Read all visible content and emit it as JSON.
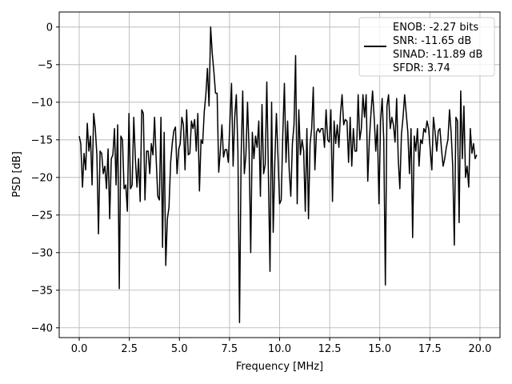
{
  "chart_data": {
    "type": "line",
    "xlabel": "Frequency [MHz]",
    "ylabel": "PSD [dB]",
    "xlim": [
      -1.0,
      21.0
    ],
    "ylim": [
      -41.3,
      2.0
    ],
    "x_ticks": [
      0.0,
      2.5,
      5.0,
      7.5,
      10.0,
      12.5,
      15.0,
      17.5,
      20.0
    ],
    "x_tick_labels": [
      "0.0",
      "2.5",
      "5.0",
      "7.5",
      "10.0",
      "12.5",
      "15.0",
      "17.5",
      "20.0"
    ],
    "y_ticks": [
      0,
      -5,
      -10,
      -15,
      -20,
      -25,
      -30,
      -35,
      -40
    ],
    "y_tick_labels": [
      "0",
      "−5",
      "−10",
      "−15",
      "−20",
      "−25",
      "−30",
      "−35",
      "−40"
    ],
    "grid": true,
    "legend": {
      "placement": "top-right",
      "entries": [
        "ENOB: -2.27 bits",
        "SNR: -11.65 dB",
        "SINAD: -11.89 dB",
        "SFDR: 3.74"
      ]
    },
    "series": [
      {
        "color": "#000000",
        "x": [
          0.0,
          0.08,
          0.16,
          0.24,
          0.32,
          0.4,
          0.48,
          0.56,
          0.64,
          0.72,
          0.8,
          0.88,
          0.96,
          1.04,
          1.12,
          1.2,
          1.28,
          1.36,
          1.44,
          1.52,
          1.6,
          1.68,
          1.76,
          1.84,
          1.92,
          2.0,
          2.08,
          2.16,
          2.24,
          2.32,
          2.4,
          2.48,
          2.56,
          2.64,
          2.72,
          2.8,
          2.88,
          2.96,
          3.04,
          3.12,
          3.2,
          3.28,
          3.36,
          3.44,
          3.52,
          3.6,
          3.68,
          3.76,
          3.84,
          3.92,
          4.0,
          4.08,
          4.16,
          4.24,
          4.32,
          4.4,
          4.48,
          4.56,
          4.64,
          4.72,
          4.8,
          4.88,
          4.96,
          5.04,
          5.12,
          5.2,
          5.28,
          5.36,
          5.44,
          5.52,
          5.6,
          5.68,
          5.76,
          5.84,
          5.92,
          6.0,
          6.08,
          6.16,
          6.24,
          6.32,
          6.4,
          6.48,
          6.56,
          6.64,
          6.72,
          6.8,
          6.88,
          6.96,
          7.04,
          7.12,
          7.2,
          7.28,
          7.36,
          7.44,
          7.52,
          7.6,
          7.68,
          7.76,
          7.84,
          7.92,
          8.0,
          8.08,
          8.16,
          8.24,
          8.32,
          8.4,
          8.48,
          8.56,
          8.64,
          8.72,
          8.8,
          8.88,
          8.96,
          9.04,
          9.12,
          9.2,
          9.28,
          9.36,
          9.44,
          9.52,
          9.6,
          9.68,
          9.76,
          9.84,
          9.92,
          10.0,
          10.08,
          10.16,
          10.24,
          10.32,
          10.4,
          10.48,
          10.56,
          10.64,
          10.72,
          10.8,
          10.88,
          10.96,
          11.04,
          11.12,
          11.2,
          11.28,
          11.36,
          11.44,
          11.52,
          11.6,
          11.68,
          11.76,
          11.84,
          11.92,
          12.0,
          12.08,
          12.16,
          12.24,
          12.32,
          12.4,
          12.48,
          12.56,
          12.64,
          12.72,
          12.8,
          12.88,
          12.96,
          13.04,
          13.12,
          13.2,
          13.28,
          13.36,
          13.44,
          13.52,
          13.6,
          13.68,
          13.76,
          13.84,
          13.92,
          14.0,
          14.08,
          14.16,
          14.24,
          14.32,
          14.4,
          14.48,
          14.56,
          14.64,
          14.72,
          14.8,
          14.88,
          14.96,
          15.04,
          15.12,
          15.2,
          15.28,
          15.36,
          15.44,
          15.52,
          15.6,
          15.68,
          15.76,
          15.84,
          15.92,
          16.0,
          16.08,
          16.16,
          16.24,
          16.32,
          16.4,
          16.48,
          16.56,
          16.64,
          16.72,
          16.8,
          16.88,
          16.96,
          17.04,
          17.12,
          17.2,
          17.28,
          17.36,
          17.44,
          17.52,
          17.6,
          17.68,
          17.76,
          17.84,
          17.92,
          18.0,
          18.08,
          18.16,
          18.24,
          18.32,
          18.4,
          18.48,
          18.56,
          18.64,
          18.72,
          18.8,
          18.88,
          18.96,
          19.04,
          19.12,
          19.2,
          19.28,
          19.36,
          19.44,
          19.52,
          19.6,
          19.68,
          19.76,
          19.84
        ],
        "y": [
          -14.5,
          -15.5,
          -21.3,
          -16.8,
          -19.0,
          -12.8,
          -16.5,
          -14.5,
          -21.0,
          -11.5,
          -13.5,
          -17.0,
          -27.5,
          -16.5,
          -16.8,
          -19.5,
          -18.5,
          -21.5,
          -16.2,
          -25.5,
          -17.5,
          -17.0,
          -13.5,
          -21.0,
          -13.0,
          -34.8,
          -14.5,
          -15.0,
          -21.5,
          -21.0,
          -24.5,
          -11.5,
          -21.5,
          -21.0,
          -12.0,
          -17.5,
          -21.3,
          -17.5,
          -23.2,
          -11.0,
          -11.5,
          -23.0,
          -16.5,
          -16.5,
          -19.5,
          -15.5,
          -17.0,
          -12.0,
          -17.5,
          -22.5,
          -23.0,
          -12.0,
          -29.3,
          -14.0,
          -31.7,
          -25.5,
          -24.0,
          -18.0,
          -15.5,
          -13.8,
          -13.3,
          -19.5,
          -16.3,
          -15.5,
          -12.0,
          -13.0,
          -19.0,
          -11.0,
          -17.0,
          -16.8,
          -12.5,
          -13.5,
          -12.3,
          -16.5,
          -11.5,
          -21.8,
          -15.0,
          -15.5,
          -11.3,
          -9.0,
          -5.5,
          -10.5,
          0.0,
          -3.5,
          -6.0,
          -8.8,
          -8.8,
          -19.3,
          -16.5,
          -13.0,
          -17.3,
          -16.3,
          -16.3,
          -18.0,
          -12.5,
          -7.5,
          -18.5,
          -12.0,
          -9.0,
          -16.5,
          -39.3,
          -17.3,
          -8.5,
          -19.5,
          -17.0,
          -10.0,
          -16.5,
          -30.0,
          -14.0,
          -17.5,
          -14.5,
          -16.0,
          -12.5,
          -22.5,
          -10.3,
          -19.5,
          -18.3,
          -7.3,
          -19.5,
          -32.5,
          -10.0,
          -27.3,
          -18.0,
          -11.5,
          -17.3,
          -23.5,
          -23.0,
          -14.3,
          -7.5,
          -18.0,
          -12.5,
          -19.0,
          -22.5,
          -15.5,
          -13.0,
          -3.8,
          -23.5,
          -11.0,
          -17.0,
          -15.0,
          -16.5,
          -24.5,
          -13.5,
          -25.5,
          -15.5,
          -13.5,
          -8.0,
          -19.0,
          -14.0,
          -13.5,
          -14.0,
          -13.5,
          -13.5,
          -16.0,
          -11.0,
          -15.0,
          -15.3,
          -11.0,
          -23.2,
          -12.5,
          -15.5,
          -13.0,
          -16.0,
          -11.5,
          -9.0,
          -13.0,
          -12.3,
          -12.5,
          -18.0,
          -12.0,
          -18.5,
          -13.5,
          -16.5,
          -16.5,
          -9.0,
          -15.0,
          -13.5,
          -9.0,
          -12.0,
          -9.0,
          -20.5,
          -15.0,
          -11.5,
          -8.5,
          -12.0,
          -16.5,
          -13.0,
          -23.5,
          -12.5,
          -9.5,
          -15.0,
          -34.3,
          -10.5,
          -9.0,
          -13.5,
          -12.0,
          -13.0,
          -15.3,
          -9.5,
          -17.5,
          -21.5,
          -14.3,
          -12.0,
          -9.0,
          -11.5,
          -14.0,
          -19.5,
          -13.5,
          -28.0,
          -14.5,
          -16.5,
          -13.5,
          -18.5,
          -15.0,
          -15.5,
          -13.5,
          -14.0,
          -12.5,
          -13.5,
          -16.3,
          -19.0,
          -12.0,
          -14.0,
          -16.5,
          -13.8,
          -13.5,
          -16.3,
          -18.5,
          -17.5,
          -16.0,
          -15.0,
          -11.0,
          -14.0,
          -18.5,
          -29.0,
          -12.0,
          -12.5,
          -26.0,
          -8.5,
          -17.5,
          -10.5,
          -20.0,
          -18.5,
          -21.3,
          -13.5,
          -16.8,
          -15.5,
          -17.5,
          -17.0
        ]
      }
    ]
  }
}
